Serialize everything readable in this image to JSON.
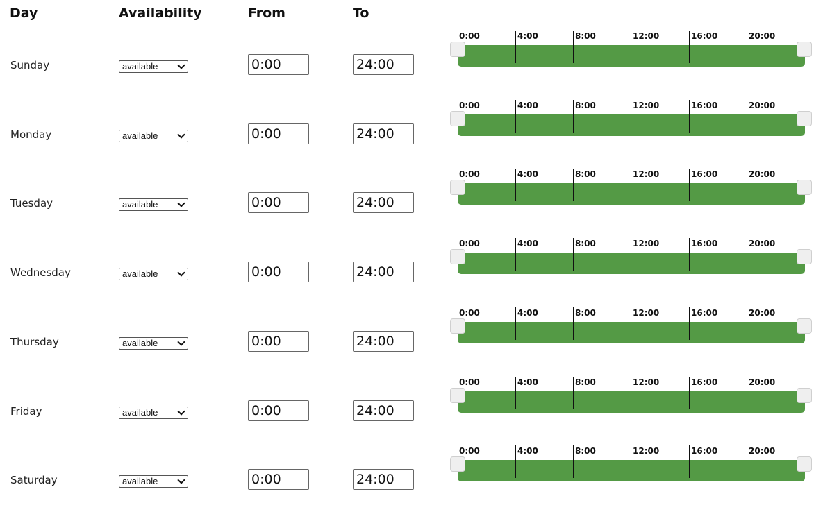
{
  "headers": {
    "day": "Day",
    "availability": "Availability",
    "from": "From",
    "to": "To"
  },
  "timeline_labels": [
    "0:00",
    "4:00",
    "8:00",
    "12:00",
    "16:00",
    "20:00"
  ],
  "bar_color": "#549a45",
  "rows": [
    {
      "day": "Sunday",
      "availability": "available",
      "from": "0:00",
      "to": "24:00"
    },
    {
      "day": "Monday",
      "availability": "available",
      "from": "0:00",
      "to": "24:00"
    },
    {
      "day": "Tuesday",
      "availability": "available",
      "from": "0:00",
      "to": "24:00"
    },
    {
      "day": "Wednesday",
      "availability": "available",
      "from": "0:00",
      "to": "24:00"
    },
    {
      "day": "Thursday",
      "availability": "available",
      "from": "0:00",
      "to": "24:00"
    },
    {
      "day": "Friday",
      "availability": "available",
      "from": "0:00",
      "to": "24:00"
    },
    {
      "day": "Saturday",
      "availability": "available",
      "from": "0:00",
      "to": "24:00"
    }
  ]
}
